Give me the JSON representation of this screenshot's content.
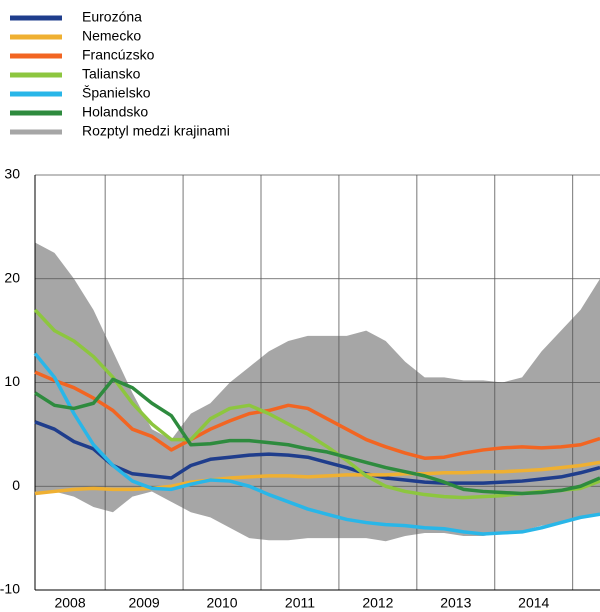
{
  "chart_data": {
    "type": "line",
    "x": [
      2008.1,
      2008.35,
      2008.6,
      2008.85,
      2009.1,
      2009.35,
      2009.6,
      2009.85,
      2010.1,
      2010.35,
      2010.6,
      2010.85,
      2011.1,
      2011.35,
      2011.6,
      2011.85,
      2012.1,
      2012.35,
      2012.6,
      2012.85,
      2013.1,
      2013.35,
      2013.6,
      2013.85,
      2014.1,
      2014.35,
      2014.6,
      2014.85,
      2015.1,
      2015.35
    ],
    "xlim": [
      2008.1,
      2015.35
    ],
    "xticks": [
      2008,
      2009,
      2010,
      2011,
      2012,
      2013,
      2014
    ],
    "ylim": [
      -10,
      30
    ],
    "yticks": [
      -10,
      0,
      10,
      20,
      30
    ],
    "grid": true,
    "legend": "top-left",
    "series": [
      {
        "name": "Eurozóna",
        "color": "#1f3d8c",
        "values": [
          6.2,
          5.5,
          4.3,
          3.6,
          2.0,
          1.2,
          1.0,
          0.8,
          2.0,
          2.6,
          2.8,
          3.0,
          3.1,
          3.0,
          2.8,
          2.3,
          1.8,
          1.2,
          0.8,
          0.6,
          0.4,
          0.3,
          0.3,
          0.3,
          0.4,
          0.5,
          0.7,
          0.9,
          1.3,
          1.8
        ]
      },
      {
        "name": "Nemecko",
        "color": "#efb032",
        "values": [
          -0.7,
          -0.5,
          -0.3,
          -0.2,
          -0.3,
          -0.3,
          -0.2,
          0,
          0.4,
          0.6,
          0.8,
          0.9,
          1.0,
          1.0,
          0.9,
          1.0,
          1.1,
          1.1,
          1.1,
          1.2,
          1.2,
          1.3,
          1.3,
          1.4,
          1.4,
          1.5,
          1.6,
          1.8,
          2.0,
          2.3
        ]
      },
      {
        "name": "Francúzsko",
        "color": "#f26522",
        "values": [
          11.0,
          10.2,
          9.5,
          8.5,
          7.3,
          5.5,
          4.8,
          3.5,
          4.5,
          5.5,
          6.3,
          7.0,
          7.3,
          7.8,
          7.5,
          6.5,
          5.5,
          4.5,
          3.8,
          3.2,
          2.7,
          2.8,
          3.2,
          3.5,
          3.7,
          3.8,
          3.7,
          3.8,
          4.0,
          4.6
        ]
      },
      {
        "name": "Taliansko",
        "color": "#8dc63f",
        "values": [
          17,
          15,
          14,
          12.5,
          10.5,
          8,
          6,
          4.5,
          4.5,
          6.5,
          7.5,
          7.8,
          7.0,
          6.0,
          5.0,
          3.8,
          2.5,
          1.0,
          0.0,
          -0.5,
          -0.8,
          -1.0,
          -1.1,
          -1.0,
          -0.9,
          -0.7,
          -0.5,
          -0.4,
          -0.2,
          0.5
        ]
      },
      {
        "name": "Španielsko",
        "color": "#29b6e8",
        "values": [
          12.8,
          10.5,
          7,
          4,
          2,
          0.5,
          -0.2,
          -0.3,
          0.2,
          0.6,
          0.5,
          0,
          -0.8,
          -1.5,
          -2.2,
          -2.7,
          -3.2,
          -3.5,
          -3.7,
          -3.8,
          -4.0,
          -4.1,
          -4.4,
          -4.6,
          -4.5,
          -4.4,
          -4.0,
          -3.5,
          -3.0,
          -2.7
        ]
      },
      {
        "name": "Holandsko",
        "color": "#2e8b3e",
        "values": [
          9,
          7.8,
          7.5,
          8,
          10.3,
          9.5,
          8,
          6.8,
          4.0,
          4.1,
          4.4,
          4.4,
          4.2,
          4.0,
          3.6,
          3.3,
          2.8,
          2.3,
          1.8,
          1.4,
          1.0,
          0.4,
          -0.3,
          -0.5,
          -0.6,
          -0.7,
          -0.6,
          -0.4,
          0,
          0.8
        ]
      },
      {
        "name": "Rozptyl medzi krajinami",
        "color": "#a6a6a6",
        "type": "band",
        "high": [
          23.5,
          22.5,
          20,
          17,
          13,
          9,
          5.5,
          4.5,
          7,
          8,
          10,
          11.5,
          13,
          14,
          14.5,
          14.5,
          14.5,
          15,
          14,
          12,
          10.5,
          10.5,
          10.2,
          10.2,
          10,
          10.5,
          13,
          15,
          17,
          20
        ],
        "low": [
          -0.5,
          -0.5,
          -1,
          -2,
          -2.5,
          -1,
          -0.5,
          -1.5,
          -2.5,
          -3,
          -4,
          -5,
          -5.2,
          -5.2,
          -5.0,
          -5.0,
          -5.0,
          -5.0,
          -5.3,
          -4.8,
          -4.5,
          -4.5,
          -4.8,
          -4.8,
          -4.5,
          -4.3,
          -3.8,
          -3.5,
          -3.0,
          -2.8
        ]
      }
    ]
  }
}
